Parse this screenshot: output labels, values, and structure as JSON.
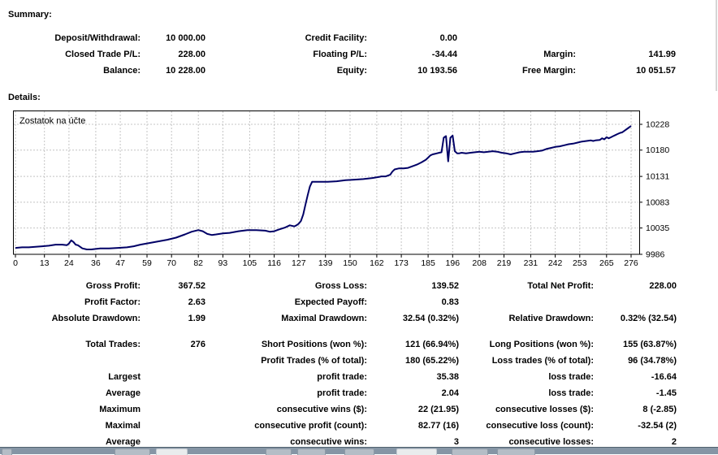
{
  "summary": {
    "heading": "Summary:",
    "rows": [
      [
        "Deposit/Withdrawal:",
        "10 000.00",
        "Credit Facility:",
        "0.00",
        "",
        ""
      ],
      [
        "Closed Trade P/L:",
        "228.00",
        "Floating P/L:",
        "-34.44",
        "Margin:",
        "141.99"
      ],
      [
        "Balance:",
        "10 228.00",
        "Equity:",
        "10 193.56",
        "Free Margin:",
        "10 051.57"
      ]
    ]
  },
  "details": {
    "heading": "Details:",
    "rows": [
      [
        "Gross Profit:",
        "367.52",
        "Gross Loss:",
        "139.52",
        "Total Net Profit:",
        "228.00"
      ],
      [
        "Profit Factor:",
        "2.63",
        "Expected Payoff:",
        "0.83",
        "",
        ""
      ],
      [
        "Absolute Drawdown:",
        "1.99",
        "Maximal Drawdown:",
        "32.54 (0.32%)",
        "Relative Drawdown:",
        "0.32% (32.54)"
      ],
      [
        "Total Trades:",
        "276",
        "Short Positions (won %):",
        "121 (66.94%)",
        "Long Positions (won %):",
        "155 (63.87%)"
      ],
      [
        "",
        "",
        "Profit Trades (% of total):",
        "180 (65.22%)",
        "Loss trades (% of total):",
        "96 (34.78%)"
      ],
      [
        "Largest",
        "",
        "profit trade:",
        "35.38",
        "loss trade:",
        "-16.64"
      ],
      [
        "Average",
        "",
        "profit trade:",
        "2.04",
        "loss trade:",
        "-1.45"
      ],
      [
        "Maximum",
        "",
        "consecutive wins ($):",
        "22 (21.95)",
        "consecutive losses ($):",
        "8 (-2.85)"
      ],
      [
        "Maximal",
        "",
        "consecutive profit (count):",
        "82.77 (16)",
        "consecutive loss (count):",
        "-32.54 (2)"
      ],
      [
        "Average",
        "",
        "consecutive wins:",
        "3",
        "consecutive losses:",
        "2"
      ]
    ]
  },
  "chart_data": {
    "type": "line",
    "title": "Zostatok na účte",
    "xlabel": "",
    "ylabel": "",
    "x_ticks": [
      0,
      13,
      24,
      36,
      47,
      59,
      70,
      82,
      93,
      105,
      116,
      127,
      139,
      150,
      162,
      173,
      185,
      196,
      208,
      219,
      231,
      242,
      253,
      265,
      276
    ],
    "y_ticks": [
      10228,
      10180,
      10131,
      10083,
      10035,
      9986
    ],
    "xlim": [
      0,
      281
    ],
    "ylim": [
      9986,
      10254
    ],
    "grid": "dashed",
    "line_color": "#000066",
    "grid_color": "#c4c4c4",
    "points": [
      [
        0,
        9998
      ],
      [
        3,
        9999
      ],
      [
        6,
        9999
      ],
      [
        9,
        10000
      ],
      [
        12,
        10001
      ],
      [
        15,
        10002
      ],
      [
        18,
        10004
      ],
      [
        21,
        10004
      ],
      [
        23,
        10003
      ],
      [
        24,
        10006
      ],
      [
        25,
        10012
      ],
      [
        26,
        10009
      ],
      [
        27,
        10004
      ],
      [
        28,
        10003
      ],
      [
        30,
        9997
      ],
      [
        32,
        9995
      ],
      [
        34,
        9995
      ],
      [
        36,
        9996
      ],
      [
        38,
        9997
      ],
      [
        42,
        9997
      ],
      [
        46,
        9998
      ],
      [
        50,
        9999
      ],
      [
        53,
        10001
      ],
      [
        56,
        10004
      ],
      [
        60,
        10007
      ],
      [
        64,
        10010
      ],
      [
        68,
        10013
      ],
      [
        72,
        10017
      ],
      [
        76,
        10023
      ],
      [
        79,
        10028
      ],
      [
        82,
        10031
      ],
      [
        84,
        10029
      ],
      [
        86,
        10024
      ],
      [
        88,
        10022
      ],
      [
        90,
        10023
      ],
      [
        93,
        10025
      ],
      [
        96,
        10026
      ],
      [
        100,
        10029
      ],
      [
        104,
        10031
      ],
      [
        108,
        10031
      ],
      [
        112,
        10030
      ],
      [
        114,
        10028
      ],
      [
        116,
        10029
      ],
      [
        118,
        10032
      ],
      [
        121,
        10036
      ],
      [
        123,
        10040
      ],
      [
        125,
        10038
      ],
      [
        126,
        10040
      ],
      [
        127,
        10043
      ],
      [
        128,
        10048
      ],
      [
        129,
        10060
      ],
      [
        130,
        10078
      ],
      [
        131,
        10096
      ],
      [
        132,
        10112
      ],
      [
        133,
        10121
      ],
      [
        136,
        10121
      ],
      [
        140,
        10121
      ],
      [
        144,
        10122
      ],
      [
        148,
        10124
      ],
      [
        152,
        10125
      ],
      [
        156,
        10126
      ],
      [
        160,
        10128
      ],
      [
        163,
        10130
      ],
      [
        164,
        10131
      ],
      [
        166,
        10131
      ],
      [
        168,
        10134
      ],
      [
        169,
        10140
      ],
      [
        170,
        10144
      ],
      [
        172,
        10146
      ],
      [
        174,
        10146
      ],
      [
        176,
        10147
      ],
      [
        178,
        10150
      ],
      [
        180,
        10153
      ],
      [
        182,
        10157
      ],
      [
        184,
        10162
      ],
      [
        185,
        10166
      ],
      [
        186,
        10170
      ],
      [
        187,
        10172
      ],
      [
        188,
        10173
      ],
      [
        189,
        10174
      ],
      [
        190,
        10175
      ],
      [
        191,
        10176
      ],
      [
        192,
        10203
      ],
      [
        193,
        10206
      ],
      [
        194,
        10159
      ],
      [
        195,
        10203
      ],
      [
        196,
        10207
      ],
      [
        197,
        10178
      ],
      [
        198,
        10174
      ],
      [
        199,
        10174
      ],
      [
        200,
        10175
      ],
      [
        202,
        10174
      ],
      [
        204,
        10175
      ],
      [
        206,
        10176
      ],
      [
        208,
        10177
      ],
      [
        210,
        10176
      ],
      [
        212,
        10177
      ],
      [
        214,
        10178
      ],
      [
        216,
        10177
      ],
      [
        218,
        10175
      ],
      [
        220,
        10174
      ],
      [
        222,
        10172
      ],
      [
        224,
        10174
      ],
      [
        226,
        10176
      ],
      [
        228,
        10177
      ],
      [
        230,
        10177
      ],
      [
        232,
        10177
      ],
      [
        234,
        10178
      ],
      [
        236,
        10179
      ],
      [
        238,
        10182
      ],
      [
        240,
        10184
      ],
      [
        242,
        10186
      ],
      [
        244,
        10187
      ],
      [
        246,
        10189
      ],
      [
        248,
        10191
      ],
      [
        250,
        10192
      ],
      [
        252,
        10194
      ],
      [
        254,
        10196
      ],
      [
        256,
        10197
      ],
      [
        258,
        10198
      ],
      [
        259,
        10197
      ],
      [
        260,
        10198
      ],
      [
        262,
        10199
      ],
      [
        263,
        10202
      ],
      [
        264,
        10200
      ],
      [
        265,
        10204
      ],
      [
        266,
        10202
      ],
      [
        267,
        10204
      ],
      [
        268,
        10206
      ],
      [
        269,
        10208
      ],
      [
        270,
        10210
      ],
      [
        271,
        10212
      ],
      [
        272,
        10213
      ],
      [
        273,
        10216
      ],
      [
        274,
        10219
      ],
      [
        275,
        10222
      ],
      [
        276,
        10225
      ]
    ]
  },
  "taskbar": {
    "segments": [
      {
        "x": 2,
        "w": 13,
        "bright": false
      },
      {
        "x": 141,
        "w": 44,
        "bright": false
      },
      {
        "x": 192,
        "w": 39,
        "bright": true
      },
      {
        "x": 327,
        "w": 32,
        "bright": false
      },
      {
        "x": 366,
        "w": 35,
        "bright": false
      },
      {
        "x": 424,
        "w": 37,
        "bright": false
      },
      {
        "x": 488,
        "w": 50,
        "bright": true
      },
      {
        "x": 556,
        "w": 45,
        "bright": false
      },
      {
        "x": 612,
        "w": 47,
        "bright": false
      }
    ]
  }
}
